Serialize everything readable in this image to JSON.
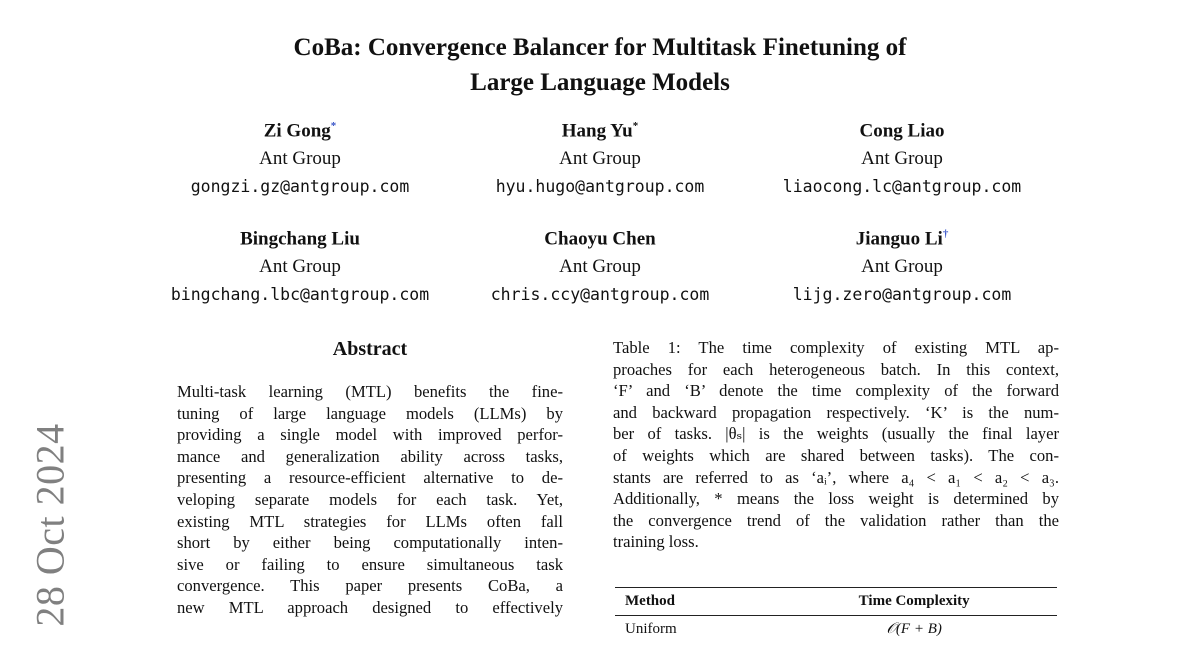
{
  "title_lines": [
    "CoBa: Convergence Balancer for Multitask Finetuning of",
    "Large Language Models"
  ],
  "authors": [
    {
      "name": "Zi Gong",
      "mark": "*",
      "affiliation": "Ant Group",
      "email": "gongzi.gz@antgroup.com"
    },
    {
      "name": "Hang Yu",
      "mark": "*",
      "affiliation": "Ant Group",
      "email": "hyu.hugo@antgroup.com"
    },
    {
      "name": "Cong Liao",
      "mark": "",
      "affiliation": "Ant Group",
      "email": "liaocong.lc@antgroup.com"
    },
    {
      "name": "Bingchang Liu",
      "mark": "",
      "affiliation": "Ant Group",
      "email": "bingchang.lbc@antgroup.com"
    },
    {
      "name": "Chaoyu Chen",
      "mark": "",
      "affiliation": "Ant Group",
      "email": "chris.ccy@antgroup.com"
    },
    {
      "name": "Jianguo Li",
      "mark": "†",
      "affiliation": "Ant Group",
      "email": "lijg.zero@antgroup.com"
    }
  ],
  "arxiv_date": "28 Oct 2024",
  "abstract": {
    "heading": "Abstract",
    "lines": [
      "Multi-task learning (MTL) benefits the fine-",
      "tuning of large language models (LLMs) by",
      "providing a single model with improved perfor-",
      "mance and generalization ability across tasks,",
      "presenting a resource-efficient alternative to de-",
      "veloping separate models for each task. Yet,",
      "existing MTL strategies for LLMs often fall",
      "short by either being computationally inten-",
      "sive or failing to ensure simultaneous task",
      "convergence. This paper presents CoBa, a",
      "new MTL approach designed to effectively"
    ]
  },
  "table_caption": {
    "lines": [
      "Table 1: The time complexity of existing MTL ap-",
      "proaches for each heterogeneous batch. In this context,",
      "‘F’ and ‘B’ denote the time complexity of the forward",
      "and backward propagation respectively. ‘K’ is the num-",
      "ber of tasks. |θₛ| is the weights (usually the final layer",
      "of weights which are shared between tasks). The con-",
      "stants are referred to as ‘aᵢ’, where a₄ < a₁ < a₂ < a₃.",
      "Additionally, * means the loss weight is determined by",
      "the convergence trend of the validation rather than the",
      "training loss."
    ]
  },
  "table": {
    "headers": [
      "Method",
      "Time Complexity"
    ],
    "rows": [
      [
        "Uniform",
        "𝒪(F + B)"
      ]
    ]
  }
}
